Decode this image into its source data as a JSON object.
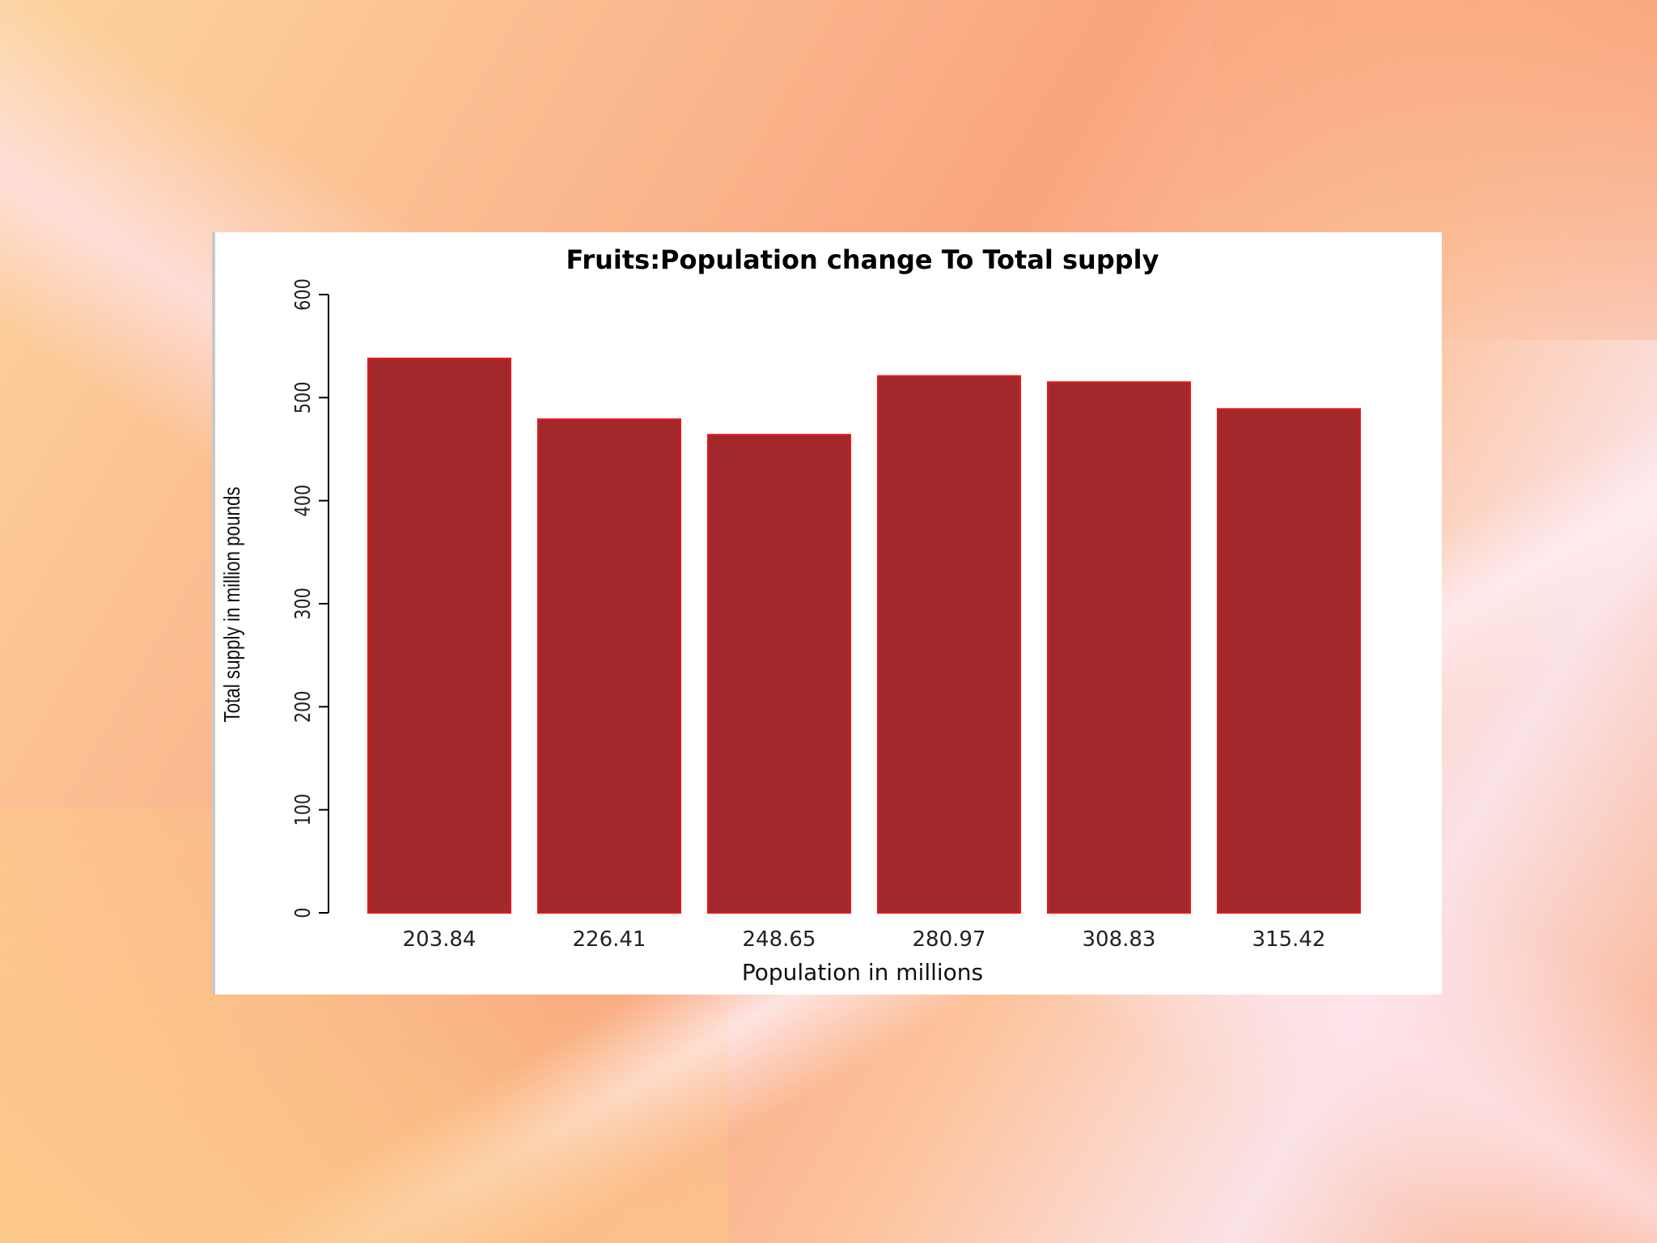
{
  "chart_data": {
    "type": "bar",
    "title": "Fruits:Population change To Total supply",
    "xlabel": "Population in millions",
    "ylabel": "Total supply in million pounds",
    "categories": [
      "203.84",
      "226.41",
      "248.65",
      "280.97",
      "308.83",
      "315.42"
    ],
    "values": [
      538,
      479,
      464,
      521,
      515,
      489
    ],
    "ylim": [
      0,
      600
    ],
    "yticks": [
      "0",
      "100",
      "200",
      "300",
      "400",
      "500",
      "600"
    ],
    "grid": false,
    "bar_color": "#a3282c",
    "bar_border_color": "#e3191c"
  }
}
